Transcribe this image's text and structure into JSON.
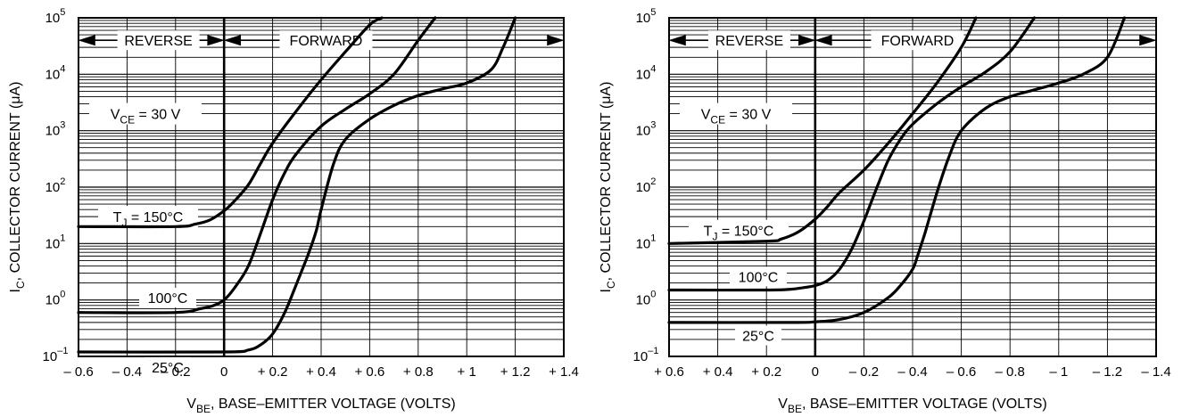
{
  "chart_data": [
    {
      "type": "line",
      "title": "",
      "xlabel": "VBE, BASE–EMITTER VOLTAGE (VOLTS)",
      "xlabel_main": "V",
      "xlabel_sub": "BE",
      "xlabel_rest": ", BASE–EMITTER VOLTAGE (VOLTS)",
      "ylabel": "IC, COLLECTOR CURRENT (μA)",
      "ylabel_main": "I",
      "ylabel_sub": "C",
      "ylabel_rest": ", COLLECTOR CURRENT (μA)",
      "yscale": "log",
      "xlim": [
        -0.6,
        1.4
      ],
      "ylim": [
        0.1,
        100000
      ],
      "grid": true,
      "x_ticks": [
        -0.6,
        -0.4,
        -0.2,
        0,
        0.2,
        0.4,
        0.6,
        0.8,
        1,
        1.2,
        1.4
      ],
      "x_tick_labels": [
        "– 0.6",
        "– 0.4",
        "– 0.2",
        "0",
        "+ 0.2",
        "+ 0.4",
        "+ 0.6",
        "+ 0.8",
        "+ 1",
        "+ 1.2",
        "+ 1.4"
      ],
      "y_tick_labels": [
        {
          "base": "10",
          "exp": "–1"
        },
        {
          "base": "10",
          "exp": "0"
        },
        {
          "base": "10",
          "exp": "1"
        },
        {
          "base": "10",
          "exp": "2"
        },
        {
          "base": "10",
          "exp": "3"
        },
        {
          "base": "10",
          "exp": "4"
        },
        {
          "base": "10",
          "exp": "5"
        }
      ],
      "annotations": {
        "reverse": "REVERSE",
        "forward": "FORWARD",
        "vce": {
          "main": "V",
          "sub": "CE",
          "rest": " = 30 V"
        },
        "tj150": {
          "main": "T",
          "sub": "J",
          "rest": " = 150°C"
        },
        "t100": "100°C",
        "t25": "25°C"
      },
      "series": [
        {
          "label": "TJ = 150°C",
          "x": [
            -0.6,
            -0.2,
            -0.12,
            -0.06,
            0,
            0.04,
            0.1,
            0.15,
            0.2,
            0.3,
            0.4,
            0.5,
            0.6,
            0.65
          ],
          "y": [
            20,
            20,
            22,
            26,
            38,
            55,
            110,
            260,
            600,
            2300,
            8000,
            25000,
            75000,
            100000
          ]
        },
        {
          "label": "100°C",
          "x": [
            -0.6,
            -0.2,
            -0.1,
            -0.05,
            0,
            0.05,
            0.1,
            0.15,
            0.2,
            0.25,
            0.3,
            0.4,
            0.5,
            0.6,
            0.7,
            0.8,
            0.87
          ],
          "y": [
            0.6,
            0.6,
            0.7,
            0.78,
            1.0,
            1.8,
            4,
            15,
            60,
            180,
            400,
            1200,
            2400,
            4500,
            10000,
            40000,
            100000
          ]
        },
        {
          "label": "25°C",
          "x": [
            -0.6,
            0,
            0.1,
            0.15,
            0.2,
            0.25,
            0.3,
            0.35,
            0.38,
            0.4,
            0.45,
            0.5,
            0.6,
            0.7,
            0.8,
            0.9,
            1.0,
            1.1,
            1.15,
            1.2
          ],
          "y": [
            0.12,
            0.12,
            0.13,
            0.16,
            0.25,
            0.6,
            2,
            7,
            17,
            40,
            250,
            700,
            1600,
            2800,
            4200,
            5500,
            7000,
            12000,
            30000,
            100000
          ]
        }
      ]
    },
    {
      "type": "line",
      "title": "",
      "xlabel": "VBE, BASE–EMITTER VOLTAGE (VOLTS)",
      "xlabel_main": "V",
      "xlabel_sub": "BE",
      "xlabel_rest": ", BASE–EMITTER VOLTAGE (VOLTS)",
      "ylabel": "IC, COLLECTOR CURRENT (μA)",
      "ylabel_main": "I",
      "ylabel_sub": "C",
      "ylabel_rest": ", COLLECTOR CURRENT (μA)",
      "yscale": "log",
      "xlim": [
        0.6,
        -1.4
      ],
      "ylim": [
        0.1,
        100000
      ],
      "grid": true,
      "x_ticks": [
        0.6,
        0.4,
        0.2,
        0,
        -0.2,
        -0.4,
        -0.6,
        -0.8,
        -1,
        -1.2,
        -1.4
      ],
      "x_tick_labels": [
        "+ 0.6",
        "+ 0.4",
        "+ 0.2",
        "0",
        "– 0.2",
        "– 0.4",
        "– 0.6",
        "– 0.8",
        "– 1",
        "– 1.2",
        "– 1.4"
      ],
      "y_tick_labels": [
        {
          "base": "10",
          "exp": "–1"
        },
        {
          "base": "10",
          "exp": "0"
        },
        {
          "base": "10",
          "exp": "1"
        },
        {
          "base": "10",
          "exp": "2"
        },
        {
          "base": "10",
          "exp": "3"
        },
        {
          "base": "10",
          "exp": "4"
        },
        {
          "base": "10",
          "exp": "5"
        }
      ],
      "annotations": {
        "reverse": "REVERSE",
        "forward": "FORWARD",
        "vce": {
          "main": "V",
          "sub": "CE",
          "rest": " = 30 V"
        },
        "tj150": {
          "main": "T",
          "sub": "J",
          "rest": " = 150°C"
        },
        "t100": "100°C",
        "t25": "25°C"
      },
      "series": [
        {
          "label": "TJ = 150°C",
          "x": [
            0.6,
            0.2,
            0.14,
            0.07,
            0,
            -0.05,
            -0.1,
            -0.2,
            -0.3,
            -0.4,
            -0.5,
            -0.6,
            -0.66
          ],
          "y": [
            10,
            11,
            12,
            16,
            27,
            45,
            80,
            200,
            600,
            2000,
            7000,
            30000,
            100000
          ]
        },
        {
          "label": "100°C",
          "x": [
            0.6,
            0.2,
            0.1,
            0.05,
            0,
            -0.05,
            -0.1,
            -0.15,
            -0.2,
            -0.25,
            -0.3,
            -0.35,
            -0.4,
            -0.5,
            -0.6,
            -0.7,
            -0.8,
            -0.9
          ],
          "y": [
            1.5,
            1.5,
            1.55,
            1.65,
            1.8,
            2.2,
            3.5,
            8,
            25,
            90,
            300,
            700,
            1300,
            3000,
            6000,
            11000,
            25000,
            100000
          ]
        },
        {
          "label": "25°C",
          "x": [
            0.6,
            0.1,
            0,
            -0.1,
            -0.2,
            -0.3,
            -0.35,
            -0.4,
            -0.42,
            -0.45,
            -0.5,
            -0.55,
            -0.6,
            -0.7,
            -0.8,
            -0.9,
            -1.0,
            -1.1,
            -1.2,
            -1.27
          ],
          "y": [
            0.4,
            0.4,
            0.41,
            0.45,
            0.6,
            1.1,
            1.8,
            3.5,
            6,
            15,
            80,
            350,
            1000,
            2500,
            4000,
            5300,
            7000,
            10000,
            20000,
            100000
          ]
        }
      ]
    }
  ]
}
